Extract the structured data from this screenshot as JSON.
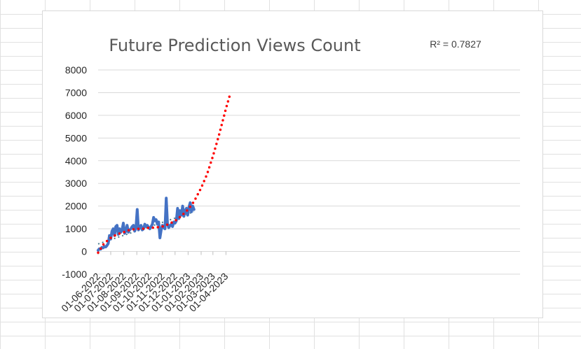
{
  "chart_data": {
    "type": "line",
    "title": "Future Prediction Views Count",
    "r_squared_label": "R² = 0.7827",
    "xlabel": "",
    "ylabel": "",
    "ylim": [
      -1000,
      8000
    ],
    "yticks": [
      "-1000",
      "0",
      "1000",
      "2000",
      "3000",
      "4000",
      "5000",
      "6000",
      "7000",
      "8000"
    ],
    "xlim": [
      "2022-06-01",
      "2023-04-15"
    ],
    "xtick_labels": [
      "01-06-2022",
      "01-07-2022",
      "01-08-2022",
      "01-09-2022",
      "01-10-2022",
      "01-11-2022",
      "01-12-2022",
      "01-01-2023",
      "01-02-2023",
      "01-03-2023",
      "01-04-2023"
    ],
    "xtick_dates": [
      "2022-06-01",
      "2022-07-01",
      "2022-08-01",
      "2022-09-01",
      "2022-10-01",
      "2022-11-01",
      "2022-12-01",
      "2023-01-01",
      "2023-02-01",
      "2023-03-01",
      "2023-04-01"
    ],
    "grid": true,
    "colors": {
      "series": "#4472c4",
      "poly_trend": "#ff0000",
      "linear_trend": "#4a7a8c",
      "grid": "#d9d9d9"
    },
    "series": [
      {
        "style": "solid",
        "x": [
          "2022-06-01",
          "2022-06-04",
          "2022-06-07",
          "2022-06-10",
          "2022-06-13",
          "2022-06-16",
          "2022-06-19",
          "2022-06-22",
          "2022-06-25",
          "2022-06-28",
          "2022-07-01",
          "2022-07-04",
          "2022-07-07",
          "2022-07-10",
          "2022-07-13",
          "2022-07-16",
          "2022-07-19",
          "2022-07-22",
          "2022-07-25",
          "2022-07-28",
          "2022-07-31",
          "2022-08-03",
          "2022-08-06",
          "2022-08-09",
          "2022-08-12",
          "2022-08-15",
          "2022-08-18",
          "2022-08-21",
          "2022-08-24",
          "2022-08-27",
          "2022-08-30",
          "2022-09-02",
          "2022-09-05",
          "2022-09-08",
          "2022-09-11",
          "2022-09-14",
          "2022-09-17",
          "2022-09-20",
          "2022-09-23",
          "2022-09-26",
          "2022-09-29",
          "2022-10-02",
          "2022-10-05",
          "2022-10-08",
          "2022-10-11",
          "2022-10-14",
          "2022-10-17",
          "2022-10-20",
          "2022-10-23",
          "2022-10-26",
          "2022-10-29",
          "2022-11-01",
          "2022-11-04",
          "2022-11-07",
          "2022-11-10",
          "2022-11-13",
          "2022-11-16",
          "2022-11-19",
          "2022-11-22",
          "2022-11-25",
          "2022-11-28",
          "2022-12-01",
          "2022-12-04",
          "2022-12-07",
          "2022-12-10",
          "2022-12-13",
          "2022-12-16",
          "2022-12-19",
          "2022-12-22",
          "2022-12-25",
          "2022-12-28",
          "2022-12-31",
          "2023-01-03",
          "2023-01-06",
          "2023-01-09",
          "2023-01-12",
          "2023-01-15"
        ],
        "values": [
          50,
          120,
          100,
          180,
          160,
          220,
          200,
          260,
          350,
          700,
          550,
          900,
          1000,
          700,
          1100,
          1150,
          750,
          1000,
          850,
          950,
          1250,
          800,
          900,
          1150,
          850,
          950,
          1000,
          1100,
          1150,
          900,
          1050,
          1850,
          950,
          1050,
          1150,
          950,
          1000,
          1200,
          1100,
          1150,
          1050,
          1000,
          1100,
          1200,
          1500,
          1350,
          1400,
          1200,
          1300,
          600,
          950,
          1150,
          1050,
          1000,
          2350,
          1200,
          1050,
          1150,
          1200,
          1100,
          1300,
          1250,
          1350,
          1900,
          1450,
          1800,
          1600,
          2000,
          1550,
          1800,
          1900,
          1600,
          1950,
          2150,
          1750,
          2000,
          1850
        ]
      },
      {
        "style": "dotted-poly-trend",
        "x": [
          "2022-06-01",
          "2022-06-15",
          "2022-07-01",
          "2022-07-15",
          "2022-08-01",
          "2022-08-15",
          "2022-09-01",
          "2022-09-15",
          "2022-10-01",
          "2022-10-15",
          "2022-11-01",
          "2022-11-15",
          "2022-12-01",
          "2022-12-15",
          "2023-01-01",
          "2023-01-15",
          "2023-02-01",
          "2023-02-15",
          "2023-03-01",
          "2023-03-15",
          "2023-04-01",
          "2023-04-12"
        ],
        "values": [
          -50,
          350,
          600,
          750,
          850,
          950,
          1000,
          1000,
          1050,
          1050,
          1100,
          1200,
          1350,
          1550,
          1850,
          2200,
          2800,
          3400,
          4200,
          5100,
          6300,
          7000
        ]
      },
      {
        "style": "dotted-linear-trend",
        "x": [
          "2022-06-01",
          "2023-01-15"
        ],
        "values": [
          330,
          1750
        ]
      }
    ]
  }
}
